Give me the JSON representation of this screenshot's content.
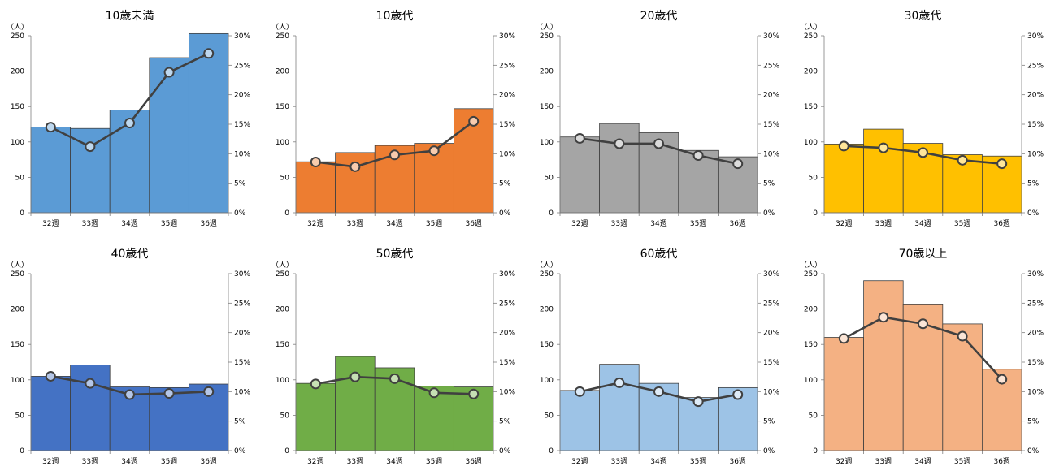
{
  "chart_data": [
    {
      "type": "bar",
      "title": "10歳未満",
      "color": "#5B9BD5",
      "marker_fill": "#BDD7EE",
      "categories": [
        "32週",
        "33週",
        "34週",
        "35週",
        "36週"
      ],
      "series": [
        {
          "values": [
            121,
            119,
            145,
            219,
            253
          ]
        },
        {
          "values": [
            0.145,
            0.112,
            0.152,
            0.238,
            0.27
          ]
        }
      ],
      "y_unit": "（人）",
      "ylim": [
        0,
        250
      ],
      "y_ticks": [
        "0",
        "50",
        "100",
        "150",
        "200",
        "250"
      ],
      "y2lim": [
        0,
        0.3
      ],
      "y2_ticks": [
        "0%",
        "5%",
        "10%",
        "15%",
        "20%",
        "25%",
        "30%"
      ]
    },
    {
      "type": "bar",
      "title": "10歳代",
      "color": "#ED7D31",
      "marker_fill": "#F8CBAD",
      "categories": [
        "32週",
        "33週",
        "34週",
        "35週",
        "36週"
      ],
      "series": [
        {
          "values": [
            72,
            85,
            95,
            98,
            147
          ]
        },
        {
          "values": [
            0.086,
            0.078,
            0.098,
            0.105,
            0.155
          ]
        }
      ],
      "y_unit": "（人）",
      "ylim": [
        0,
        250
      ],
      "y_ticks": [
        "0",
        "50",
        "100",
        "150",
        "200",
        "250"
      ],
      "y2lim": [
        0,
        0.3
      ],
      "y2_ticks": [
        "0%",
        "5%",
        "10%",
        "15%",
        "20%",
        "25%",
        "30%"
      ]
    },
    {
      "type": "bar",
      "title": "20歳代",
      "color": "#A5A5A5",
      "marker_fill": "#DBDBDB",
      "categories": [
        "32週",
        "33週",
        "34週",
        "35週",
        "36週"
      ],
      "series": [
        {
          "values": [
            107,
            126,
            113,
            88,
            79
          ]
        },
        {
          "values": [
            0.126,
            0.117,
            0.117,
            0.097,
            0.083
          ]
        }
      ],
      "y_unit": "（人）",
      "ylim": [
        0,
        250
      ],
      "y_ticks": [
        "0",
        "50",
        "100",
        "150",
        "200",
        "250"
      ],
      "y2lim": [
        0,
        0.3
      ],
      "y2_ticks": [
        "0%",
        "5%",
        "10%",
        "15%",
        "20%",
        "25%",
        "30%"
      ]
    },
    {
      "type": "bar",
      "title": "30歳代",
      "color": "#FFC000",
      "marker_fill": "#FFE699",
      "categories": [
        "32週",
        "33週",
        "34週",
        "35週",
        "36週"
      ],
      "series": [
        {
          "values": [
            97,
            118,
            98,
            82,
            80
          ]
        },
        {
          "values": [
            0.113,
            0.11,
            0.102,
            0.089,
            0.083
          ]
        }
      ],
      "y_unit": "（人）",
      "ylim": [
        0,
        250
      ],
      "y_ticks": [
        "0",
        "50",
        "100",
        "150",
        "200",
        "250"
      ],
      "y2lim": [
        0,
        0.3
      ],
      "y2_ticks": [
        "0%",
        "5%",
        "10%",
        "15%",
        "20%",
        "25%",
        "30%"
      ]
    },
    {
      "type": "bar",
      "title": "40歳代",
      "color": "#4472C4",
      "marker_fill": "#B4C6E7",
      "categories": [
        "32週",
        "33週",
        "34週",
        "35週",
        "36週"
      ],
      "series": [
        {
          "values": [
            105,
            121,
            90,
            89,
            94
          ]
        },
        {
          "values": [
            0.126,
            0.114,
            0.095,
            0.097,
            0.1
          ]
        }
      ],
      "y_unit": "（人）",
      "ylim": [
        0,
        250
      ],
      "y_ticks": [
        "0",
        "50",
        "100",
        "150",
        "200",
        "250"
      ],
      "y2lim": [
        0,
        0.3
      ],
      "y2_ticks": [
        "0%",
        "5%",
        "10%",
        "15%",
        "20%",
        "25%",
        "30%"
      ]
    },
    {
      "type": "bar",
      "title": "50歳代",
      "color": "#70AD47",
      "marker_fill": "#C6E0B4",
      "categories": [
        "32週",
        "33週",
        "34週",
        "35週",
        "36週"
      ],
      "series": [
        {
          "values": [
            95,
            133,
            117,
            91,
            90
          ]
        },
        {
          "values": [
            0.113,
            0.125,
            0.122,
            0.098,
            0.096
          ]
        }
      ],
      "y_unit": "（人）",
      "ylim": [
        0,
        250
      ],
      "y_ticks": [
        "0",
        "50",
        "100",
        "150",
        "200",
        "250"
      ],
      "y2lim": [
        0,
        0.3
      ],
      "y2_ticks": [
        "0%",
        "5%",
        "10%",
        "15%",
        "20%",
        "25%",
        "30%"
      ]
    },
    {
      "type": "bar",
      "title": "60歳代",
      "color": "#9DC3E6",
      "marker_fill": "#DEEBF7",
      "categories": [
        "32週",
        "33週",
        "34週",
        "35週",
        "36週"
      ],
      "series": [
        {
          "values": [
            85,
            122,
            95,
            75,
            89
          ]
        },
        {
          "values": [
            0.1,
            0.115,
            0.1,
            0.083,
            0.095
          ]
        }
      ],
      "y_unit": "（人）",
      "ylim": [
        0,
        250
      ],
      "y_ticks": [
        "0",
        "50",
        "100",
        "150",
        "200",
        "250"
      ],
      "y2lim": [
        0,
        0.3
      ],
      "y2_ticks": [
        "0%",
        "5%",
        "10%",
        "15%",
        "20%",
        "25%",
        "30%"
      ]
    },
    {
      "type": "bar",
      "title": "70歳以上",
      "color": "#F4B183",
      "marker_fill": "#FBE5D6",
      "categories": [
        "32週",
        "33週",
        "34週",
        "35週",
        "36週"
      ],
      "series": [
        {
          "values": [
            160,
            240,
            206,
            179,
            115
          ]
        },
        {
          "values": [
            0.19,
            0.226,
            0.215,
            0.194,
            0.121
          ]
        }
      ],
      "y_unit": "（人）",
      "ylim": [
        0,
        250
      ],
      "y_ticks": [
        "0",
        "50",
        "100",
        "150",
        "200",
        "250"
      ],
      "y2lim": [
        0,
        0.3
      ],
      "y2_ticks": [
        "0%",
        "5%",
        "10%",
        "15%",
        "20%",
        "25%",
        "30%"
      ]
    }
  ]
}
